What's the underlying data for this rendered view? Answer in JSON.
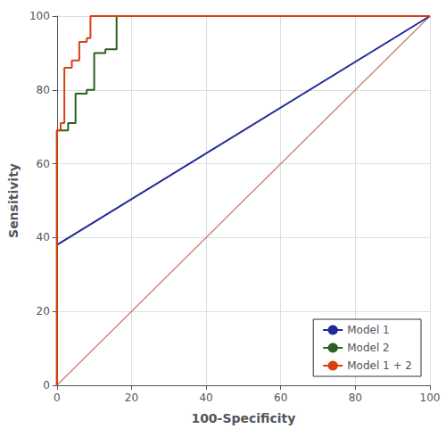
{
  "chart_data": {
    "type": "line",
    "xlabel": "100-Specificity",
    "ylabel": "Sensitivity",
    "xlim": [
      0,
      100
    ],
    "ylim": [
      0,
      100
    ],
    "xticks": [
      0,
      20,
      40,
      60,
      80,
      100
    ],
    "yticks": [
      0,
      20,
      40,
      60,
      80,
      100
    ],
    "grid": true,
    "legend": "lower right",
    "series": [
      {
        "color": "#c8826e",
        "x": [
          0,
          100
        ],
        "values": [
          0,
          100
        ]
      },
      {
        "name": "Model 1",
        "color": "#1f2899",
        "x": [
          0,
          100
        ],
        "values": [
          38,
          100
        ]
      },
      {
        "name": "Model 2",
        "color": "#2a6020",
        "x": [
          0,
          0,
          3,
          3,
          5,
          5,
          8,
          8,
          10,
          10,
          13,
          13,
          16,
          16,
          20,
          100
        ],
        "values": [
          0,
          69,
          69,
          71,
          71,
          79,
          79,
          80,
          80,
          90,
          90,
          91,
          91,
          100,
          100,
          100
        ]
      },
      {
        "name": "Model 1 + 2",
        "color": "#d94010",
        "x": [
          0,
          0,
          1,
          1,
          2,
          2,
          4,
          4,
          6,
          6,
          8,
          8,
          9,
          9,
          20,
          100
        ],
        "values": [
          0,
          69,
          69,
          71,
          71,
          86,
          86,
          88,
          88,
          93,
          93,
          94,
          94,
          100,
          100,
          100
        ]
      }
    ]
  }
}
